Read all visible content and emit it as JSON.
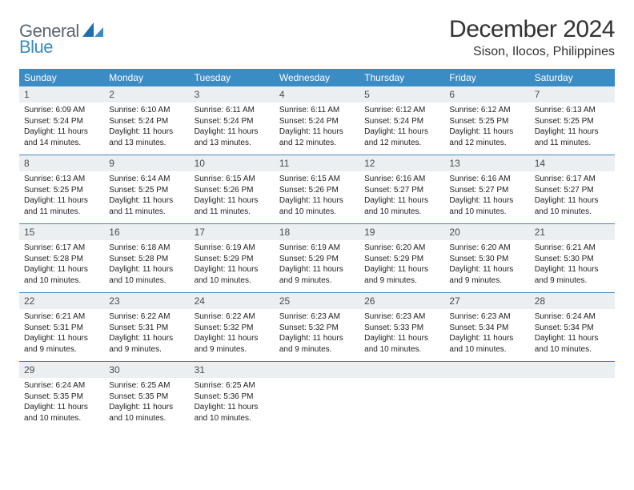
{
  "logo": {
    "line1": "General",
    "line2": "Blue"
  },
  "title": "December 2024",
  "location": "Sison, Ilocos, Philippines",
  "colors": {
    "header_bg": "#3b8bc4",
    "daynum_bg": "#eceff1",
    "week_border": "#3b8bc4",
    "text": "#222222",
    "logo_gray": "#5a6670",
    "logo_blue": "#3b8bc4"
  },
  "day_names": [
    "Sunday",
    "Monday",
    "Tuesday",
    "Wednesday",
    "Thursday",
    "Friday",
    "Saturday"
  ],
  "weeks": [
    [
      {
        "n": "1",
        "sunrise": "Sunrise: 6:09 AM",
        "sunset": "Sunset: 5:24 PM",
        "dl1": "Daylight: 11 hours",
        "dl2": "and 14 minutes."
      },
      {
        "n": "2",
        "sunrise": "Sunrise: 6:10 AM",
        "sunset": "Sunset: 5:24 PM",
        "dl1": "Daylight: 11 hours",
        "dl2": "and 13 minutes."
      },
      {
        "n": "3",
        "sunrise": "Sunrise: 6:11 AM",
        "sunset": "Sunset: 5:24 PM",
        "dl1": "Daylight: 11 hours",
        "dl2": "and 13 minutes."
      },
      {
        "n": "4",
        "sunrise": "Sunrise: 6:11 AM",
        "sunset": "Sunset: 5:24 PM",
        "dl1": "Daylight: 11 hours",
        "dl2": "and 12 minutes."
      },
      {
        "n": "5",
        "sunrise": "Sunrise: 6:12 AM",
        "sunset": "Sunset: 5:24 PM",
        "dl1": "Daylight: 11 hours",
        "dl2": "and 12 minutes."
      },
      {
        "n": "6",
        "sunrise": "Sunrise: 6:12 AM",
        "sunset": "Sunset: 5:25 PM",
        "dl1": "Daylight: 11 hours",
        "dl2": "and 12 minutes."
      },
      {
        "n": "7",
        "sunrise": "Sunrise: 6:13 AM",
        "sunset": "Sunset: 5:25 PM",
        "dl1": "Daylight: 11 hours",
        "dl2": "and 11 minutes."
      }
    ],
    [
      {
        "n": "8",
        "sunrise": "Sunrise: 6:13 AM",
        "sunset": "Sunset: 5:25 PM",
        "dl1": "Daylight: 11 hours",
        "dl2": "and 11 minutes."
      },
      {
        "n": "9",
        "sunrise": "Sunrise: 6:14 AM",
        "sunset": "Sunset: 5:25 PM",
        "dl1": "Daylight: 11 hours",
        "dl2": "and 11 minutes."
      },
      {
        "n": "10",
        "sunrise": "Sunrise: 6:15 AM",
        "sunset": "Sunset: 5:26 PM",
        "dl1": "Daylight: 11 hours",
        "dl2": "and 11 minutes."
      },
      {
        "n": "11",
        "sunrise": "Sunrise: 6:15 AM",
        "sunset": "Sunset: 5:26 PM",
        "dl1": "Daylight: 11 hours",
        "dl2": "and 10 minutes."
      },
      {
        "n": "12",
        "sunrise": "Sunrise: 6:16 AM",
        "sunset": "Sunset: 5:27 PM",
        "dl1": "Daylight: 11 hours",
        "dl2": "and 10 minutes."
      },
      {
        "n": "13",
        "sunrise": "Sunrise: 6:16 AM",
        "sunset": "Sunset: 5:27 PM",
        "dl1": "Daylight: 11 hours",
        "dl2": "and 10 minutes."
      },
      {
        "n": "14",
        "sunrise": "Sunrise: 6:17 AM",
        "sunset": "Sunset: 5:27 PM",
        "dl1": "Daylight: 11 hours",
        "dl2": "and 10 minutes."
      }
    ],
    [
      {
        "n": "15",
        "sunrise": "Sunrise: 6:17 AM",
        "sunset": "Sunset: 5:28 PM",
        "dl1": "Daylight: 11 hours",
        "dl2": "and 10 minutes."
      },
      {
        "n": "16",
        "sunrise": "Sunrise: 6:18 AM",
        "sunset": "Sunset: 5:28 PM",
        "dl1": "Daylight: 11 hours",
        "dl2": "and 10 minutes."
      },
      {
        "n": "17",
        "sunrise": "Sunrise: 6:19 AM",
        "sunset": "Sunset: 5:29 PM",
        "dl1": "Daylight: 11 hours",
        "dl2": "and 10 minutes."
      },
      {
        "n": "18",
        "sunrise": "Sunrise: 6:19 AM",
        "sunset": "Sunset: 5:29 PM",
        "dl1": "Daylight: 11 hours",
        "dl2": "and 9 minutes."
      },
      {
        "n": "19",
        "sunrise": "Sunrise: 6:20 AM",
        "sunset": "Sunset: 5:29 PM",
        "dl1": "Daylight: 11 hours",
        "dl2": "and 9 minutes."
      },
      {
        "n": "20",
        "sunrise": "Sunrise: 6:20 AM",
        "sunset": "Sunset: 5:30 PM",
        "dl1": "Daylight: 11 hours",
        "dl2": "and 9 minutes."
      },
      {
        "n": "21",
        "sunrise": "Sunrise: 6:21 AM",
        "sunset": "Sunset: 5:30 PM",
        "dl1": "Daylight: 11 hours",
        "dl2": "and 9 minutes."
      }
    ],
    [
      {
        "n": "22",
        "sunrise": "Sunrise: 6:21 AM",
        "sunset": "Sunset: 5:31 PM",
        "dl1": "Daylight: 11 hours",
        "dl2": "and 9 minutes."
      },
      {
        "n": "23",
        "sunrise": "Sunrise: 6:22 AM",
        "sunset": "Sunset: 5:31 PM",
        "dl1": "Daylight: 11 hours",
        "dl2": "and 9 minutes."
      },
      {
        "n": "24",
        "sunrise": "Sunrise: 6:22 AM",
        "sunset": "Sunset: 5:32 PM",
        "dl1": "Daylight: 11 hours",
        "dl2": "and 9 minutes."
      },
      {
        "n": "25",
        "sunrise": "Sunrise: 6:23 AM",
        "sunset": "Sunset: 5:32 PM",
        "dl1": "Daylight: 11 hours",
        "dl2": "and 9 minutes."
      },
      {
        "n": "26",
        "sunrise": "Sunrise: 6:23 AM",
        "sunset": "Sunset: 5:33 PM",
        "dl1": "Daylight: 11 hours",
        "dl2": "and 10 minutes."
      },
      {
        "n": "27",
        "sunrise": "Sunrise: 6:23 AM",
        "sunset": "Sunset: 5:34 PM",
        "dl1": "Daylight: 11 hours",
        "dl2": "and 10 minutes."
      },
      {
        "n": "28",
        "sunrise": "Sunrise: 6:24 AM",
        "sunset": "Sunset: 5:34 PM",
        "dl1": "Daylight: 11 hours",
        "dl2": "and 10 minutes."
      }
    ],
    [
      {
        "n": "29",
        "sunrise": "Sunrise: 6:24 AM",
        "sunset": "Sunset: 5:35 PM",
        "dl1": "Daylight: 11 hours",
        "dl2": "and 10 minutes."
      },
      {
        "n": "30",
        "sunrise": "Sunrise: 6:25 AM",
        "sunset": "Sunset: 5:35 PM",
        "dl1": "Daylight: 11 hours",
        "dl2": "and 10 minutes."
      },
      {
        "n": "31",
        "sunrise": "Sunrise: 6:25 AM",
        "sunset": "Sunset: 5:36 PM",
        "dl1": "Daylight: 11 hours",
        "dl2": "and 10 minutes."
      },
      {
        "n": "",
        "empty": true
      },
      {
        "n": "",
        "empty": true
      },
      {
        "n": "",
        "empty": true
      },
      {
        "n": "",
        "empty": true
      }
    ]
  ]
}
